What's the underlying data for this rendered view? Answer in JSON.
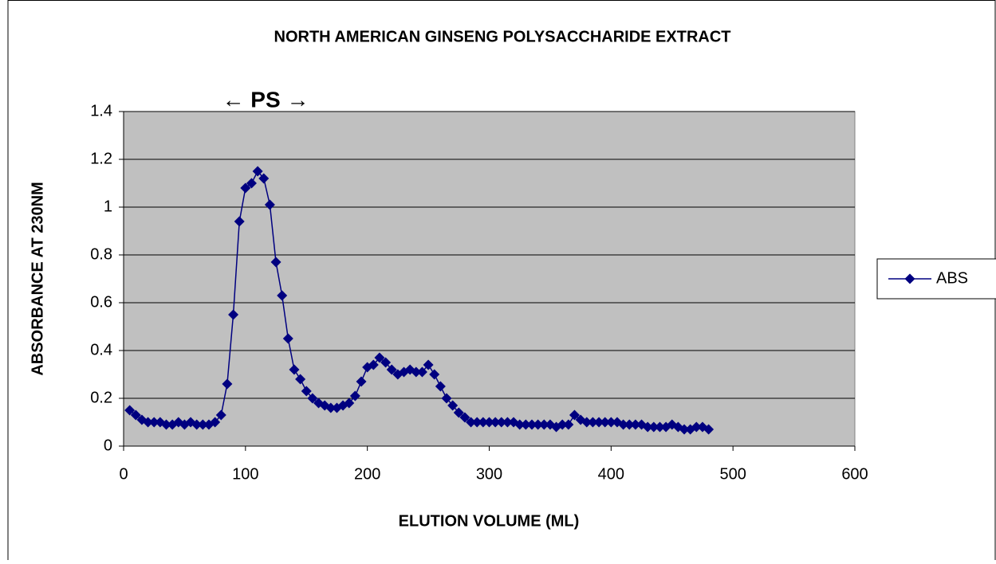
{
  "chart_data": {
    "type": "line",
    "title": "NORTH AMERICAN GINSENG POLYSACCHARIDE EXTRACT",
    "annotation": "← PS →",
    "x_label": "ELUTION VOLUME (ML)",
    "y_label": "ABSORBANCE AT 230NM",
    "x": [
      5,
      10,
      15,
      20,
      25,
      30,
      35,
      40,
      45,
      50,
      55,
      60,
      65,
      70,
      75,
      80,
      85,
      90,
      95,
      100,
      105,
      110,
      115,
      120,
      125,
      130,
      135,
      140,
      145,
      150,
      155,
      160,
      165,
      170,
      175,
      180,
      185,
      190,
      195,
      200,
      205,
      210,
      215,
      220,
      225,
      230,
      235,
      240,
      245,
      250,
      255,
      260,
      265,
      270,
      275,
      280,
      285,
      290,
      295,
      300,
      305,
      310,
      315,
      320,
      325,
      330,
      335,
      340,
      345,
      350,
      355,
      360,
      365,
      370,
      375,
      380,
      385,
      390,
      395,
      400,
      405,
      410,
      415,
      420,
      425,
      430,
      435,
      440,
      445,
      450,
      455,
      460,
      465,
      470,
      475,
      480
    ],
    "series": [
      {
        "name": "ABS",
        "color": "#000080",
        "values": [
          0.15,
          0.13,
          0.11,
          0.1,
          0.1,
          0.1,
          0.09,
          0.09,
          0.1,
          0.09,
          0.1,
          0.09,
          0.09,
          0.09,
          0.1,
          0.13,
          0.26,
          0.55,
          0.94,
          1.08,
          1.1,
          1.15,
          1.12,
          1.01,
          0.77,
          0.63,
          0.45,
          0.32,
          0.28,
          0.23,
          0.2,
          0.18,
          0.17,
          0.16,
          0.16,
          0.17,
          0.18,
          0.21,
          0.27,
          0.33,
          0.34,
          0.37,
          0.35,
          0.32,
          0.3,
          0.31,
          0.32,
          0.31,
          0.31,
          0.34,
          0.3,
          0.25,
          0.2,
          0.17,
          0.14,
          0.12,
          0.1,
          0.1,
          0.1,
          0.1,
          0.1,
          0.1,
          0.1,
          0.1,
          0.09,
          0.09,
          0.09,
          0.09,
          0.09,
          0.09,
          0.08,
          0.09,
          0.09,
          0.13,
          0.11,
          0.1,
          0.1,
          0.1,
          0.1,
          0.1,
          0.1,
          0.09,
          0.09,
          0.09,
          0.09,
          0.08,
          0.08,
          0.08,
          0.08,
          0.09,
          0.08,
          0.07,
          0.07,
          0.08,
          0.08,
          0.07
        ]
      }
    ],
    "xlim": [
      0,
      600
    ],
    "xticks": [
      0,
      100,
      200,
      300,
      400,
      500,
      600
    ],
    "ylim": [
      0,
      1.4
    ],
    "yticks": [
      0,
      0.2,
      0.4,
      0.6,
      0.8,
      1,
      1.2,
      1.4
    ],
    "grid": true,
    "plot_background": "#c0c0c0",
    "legend": "right"
  }
}
